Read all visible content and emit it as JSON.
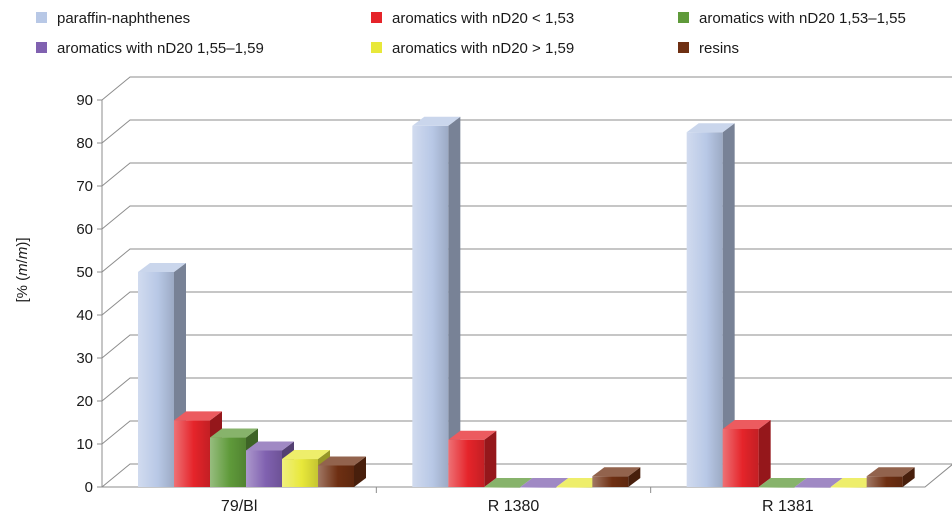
{
  "chart_data": {
    "type": "bar",
    "title": "",
    "xlabel": "",
    "ylabel": "[% (m/m)]",
    "ylabel_parts": [
      "[% (",
      "m",
      "/",
      "m",
      ")]"
    ],
    "ylim": [
      0,
      90
    ],
    "yticks": [
      "0",
      "10",
      "20",
      "30",
      "40",
      "50",
      "60",
      "70",
      "80",
      "90"
    ],
    "grid": true,
    "legend_position": "top",
    "categories": [
      "79/Bl",
      "R 1380",
      "R 1381"
    ],
    "series": [
      {
        "name": "paraffin-naphthenes",
        "values": [
          50,
          84,
          82.5
        ],
        "color": "#b8c8e6"
      },
      {
        "name": "aromatics with nD20 < 1,53",
        "values": [
          15.5,
          11,
          13.5
        ],
        "color": "#e5242a"
      },
      {
        "name": "aromatics with nD20 1,53–1,55",
        "values": [
          11.5,
          0,
          0
        ],
        "color": "#5f9a3a"
      },
      {
        "name": "aromatics with nD20 1,55–1,59",
        "values": [
          8.5,
          0,
          0
        ],
        "color": "#8061b0"
      },
      {
        "name": "aromatics with nD20 > 1,59",
        "values": [
          6.5,
          0,
          0
        ],
        "color": "#e8e83a"
      },
      {
        "name": "resins",
        "values": [
          5,
          2.5,
          2.5
        ],
        "color": "#6e2f12"
      }
    ]
  }
}
